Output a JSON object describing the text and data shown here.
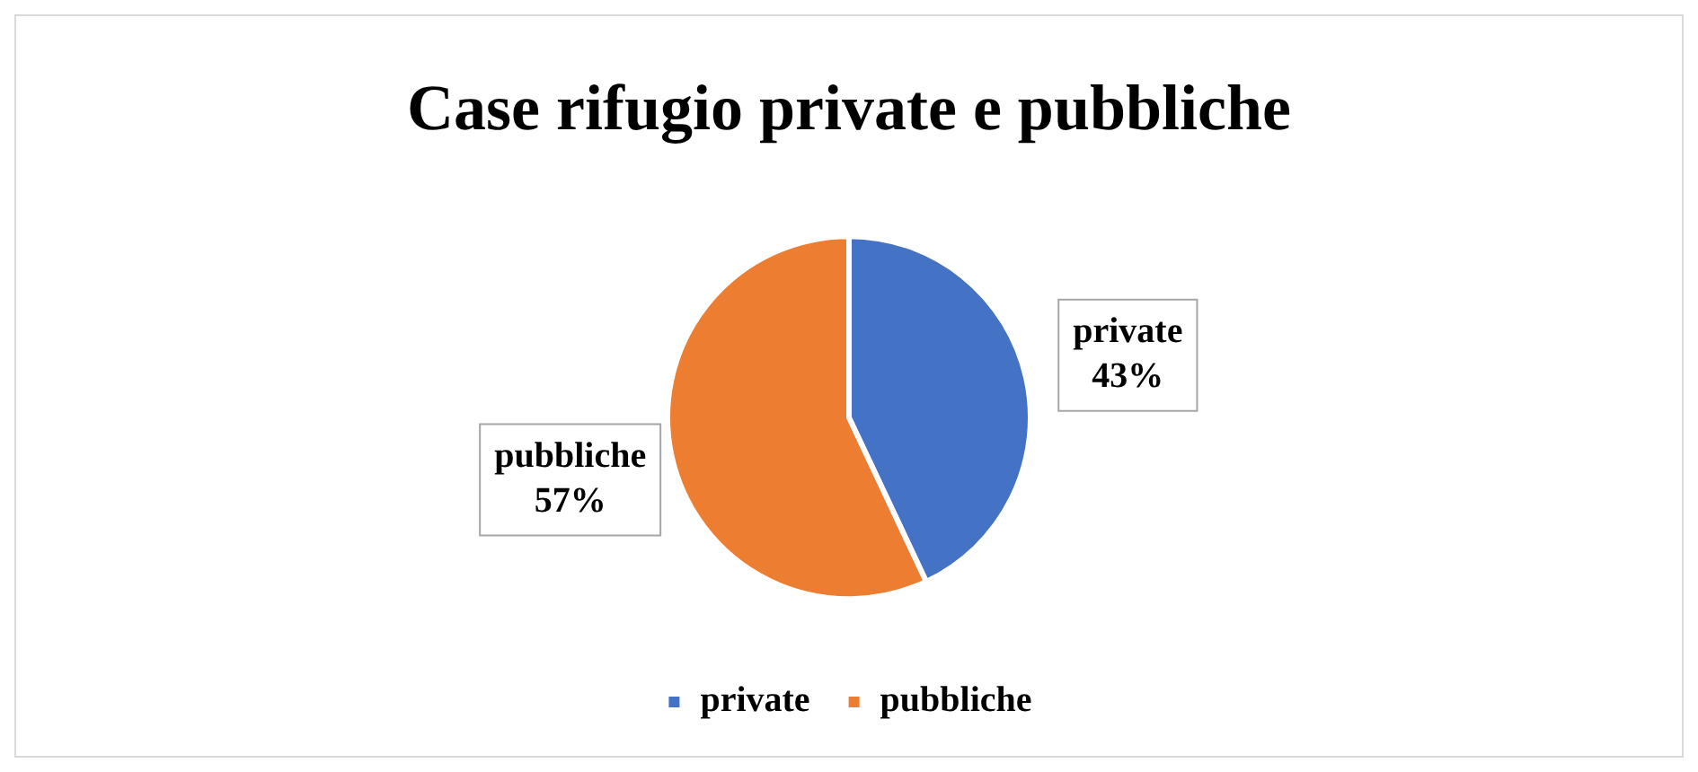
{
  "chart_data": {
    "type": "pie",
    "title": "Case rifugio private e pubbliche",
    "categories": [
      "private",
      "pubbliche"
    ],
    "values": [
      43,
      57
    ],
    "colors": [
      "#4472c4",
      "#ed7d31"
    ],
    "value_labels": [
      "43%",
      "57%"
    ],
    "legend": "bottom"
  }
}
